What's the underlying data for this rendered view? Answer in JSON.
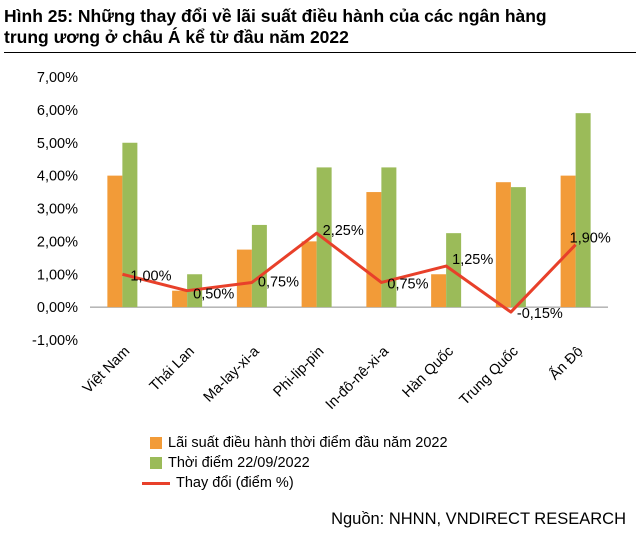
{
  "title_line1": "Hình 25: Những thay đổi về lãi suất điều hành của các ngân hàng",
  "title_line2": "trung ương ở châu Á kể từ đầu năm 2022",
  "source": "Nguồn: NHNN, VNDIRECT RESEARCH",
  "chart_data": {
    "type": "bar",
    "categories": [
      "Việt Nam",
      "Thái Lan",
      "Ma-lay-xi-a",
      "Phi-lip-pin",
      "In-đô-nê-xi-a",
      "Hàn Quốc",
      "Trung Quốc",
      "Ấn Độ"
    ],
    "ylim": [
      -1,
      7
    ],
    "yticks": [
      "-1,00%",
      "0,00%",
      "1,00%",
      "2,00%",
      "3,00%",
      "4,00%",
      "5,00%",
      "6,00%",
      "7,00%"
    ],
    "series": [
      {
        "name": "Lãi suất điều hành thời điểm đầu năm 2022",
        "type": "bar",
        "color": "#F29B38",
        "values": [
          4.0,
          0.5,
          1.75,
          2.0,
          3.5,
          1.0,
          3.8,
          4.0
        ]
      },
      {
        "name": "Thời điểm 22/09/2022",
        "type": "bar",
        "color": "#9BBB59",
        "values": [
          5.0,
          1.0,
          2.5,
          4.25,
          4.25,
          2.25,
          3.65,
          5.9
        ]
      },
      {
        "name": "Thay đổi (điểm %)",
        "type": "line",
        "color": "#E8402A",
        "values": [
          1.0,
          0.5,
          0.75,
          2.25,
          0.75,
          1.25,
          -0.15,
          1.9
        ],
        "labels": [
          "1,00%",
          "0,50%",
          "0,75%",
          "2,25%",
          "0,75%",
          "1,25%",
          "-0,15%",
          "1,90%"
        ]
      }
    ],
    "grid": false,
    "legend_placement": "bottom-left"
  }
}
